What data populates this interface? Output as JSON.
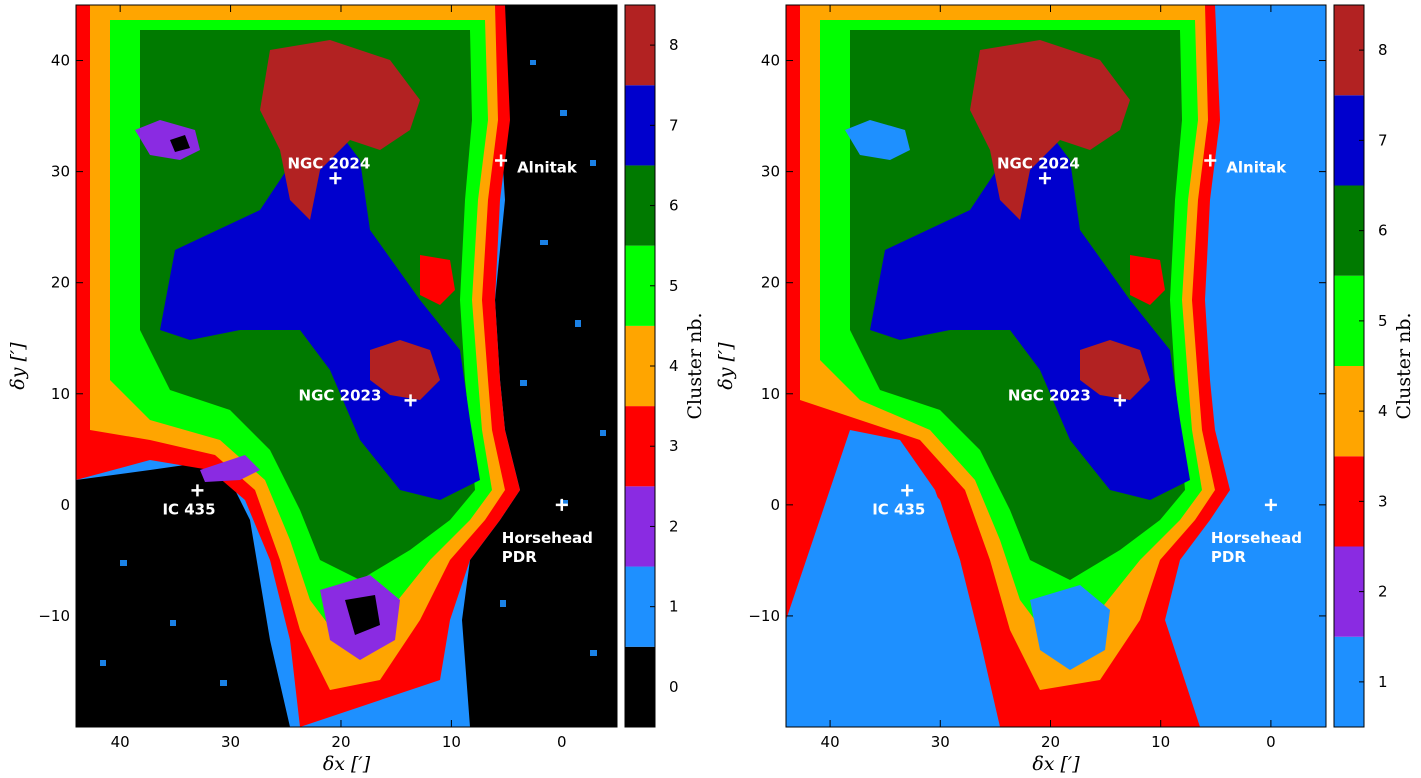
{
  "chart_data": [
    {
      "type": "heatmap",
      "panel": "left",
      "title": "",
      "xlabel": "δx [′]",
      "ylabel": "δy [′]",
      "xlim": [
        44,
        -5
      ],
      "ylim": [
        -20,
        45
      ],
      "xticks": [
        40,
        30,
        20,
        10,
        0
      ],
      "yticks": [
        -10,
        0,
        10,
        20,
        30,
        40
      ],
      "xtick_labels": [
        "40",
        "30",
        "20",
        "10",
        "0"
      ],
      "ytick_labels": [
        "−10",
        "0",
        "10",
        "20",
        "30",
        "40"
      ],
      "colorbar": {
        "label": "Cluster nb.",
        "categories": [
          "0",
          "1",
          "2",
          "3",
          "4",
          "5",
          "6",
          "7",
          "8"
        ],
        "colors": [
          "#000000",
          "#1e90ff",
          "#8a2be2",
          "#ff0000",
          "#ffa500",
          "#00ff00",
          "#007a00",
          "#0000cd",
          "#b22222"
        ]
      },
      "annotations": [
        {
          "text": "NGC 2024",
          "x": 20.5,
          "y": 29.4
        },
        {
          "text": "Alnitak",
          "x": 5.5,
          "y": 31.0
        },
        {
          "text": "NGC 2023",
          "x": 13.7,
          "y": 9.4
        },
        {
          "text": "IC 435",
          "x": 33.0,
          "y": 1.3
        },
        {
          "text": "Horsehead",
          "x": 0.0,
          "y": 0.0
        },
        {
          "text": "PDR",
          "x": 0.0,
          "y": 0.0
        }
      ]
    },
    {
      "type": "heatmap",
      "panel": "right",
      "title": "",
      "xlabel": "δx [′]",
      "ylabel": "δy [′]",
      "xlim": [
        44,
        -5
      ],
      "ylim": [
        -20,
        45
      ],
      "xticks": [
        40,
        30,
        20,
        10,
        0
      ],
      "yticks": [
        -10,
        0,
        10,
        20,
        30,
        40
      ],
      "xtick_labels": [
        "40",
        "30",
        "20",
        "10",
        "0"
      ],
      "ytick_labels": [
        "−10",
        "0",
        "10",
        "20",
        "30",
        "40"
      ],
      "colorbar": {
        "label": "Cluster nb.",
        "categories": [
          "1",
          "2",
          "3",
          "4",
          "5",
          "6",
          "7",
          "8"
        ],
        "colors": [
          "#1e90ff",
          "#8a2be2",
          "#ff0000",
          "#ffa500",
          "#00ff00",
          "#007a00",
          "#0000cd",
          "#b22222"
        ]
      },
      "annotations": [
        {
          "text": "NGC 2024",
          "x": 20.5,
          "y": 29.4
        },
        {
          "text": "Alnitak",
          "x": 5.5,
          "y": 31.0
        },
        {
          "text": "NGC 2023",
          "x": 13.7,
          "y": 9.4
        },
        {
          "text": "IC 435",
          "x": 33.0,
          "y": 1.3
        },
        {
          "text": "Horsehead",
          "x": 0.0,
          "y": 0.0
        },
        {
          "text": "PDR",
          "x": 0.0,
          "y": 0.0
        }
      ]
    }
  ]
}
